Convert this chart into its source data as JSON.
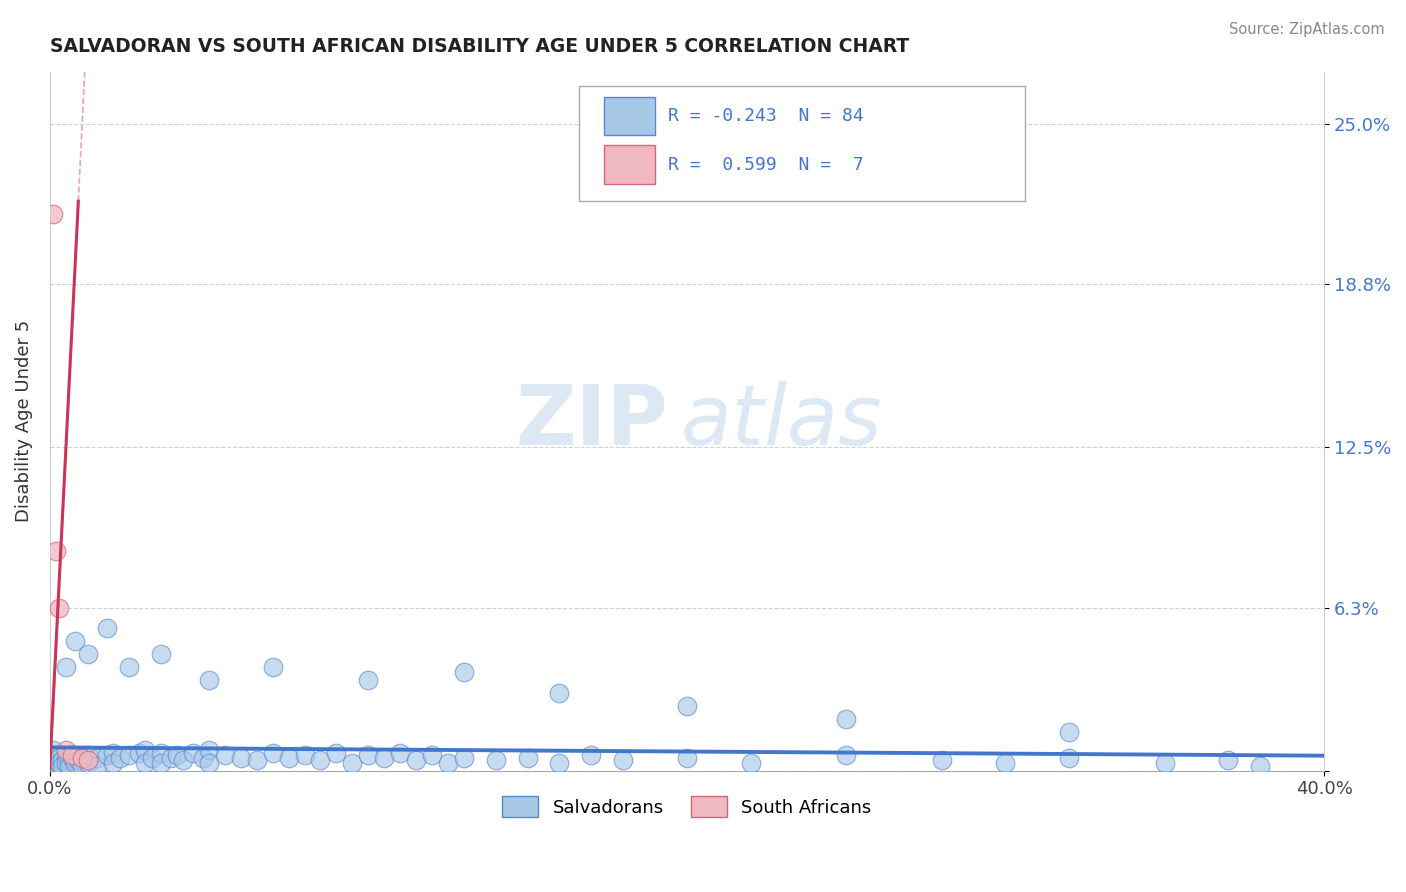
{
  "title": "SALVADORAN VS SOUTH AFRICAN DISABILITY AGE UNDER 5 CORRELATION CHART",
  "source": "Source: ZipAtlas.com",
  "ylabel": "Disability Age Under 5",
  "yticks": [
    0.0,
    0.063,
    0.125,
    0.188,
    0.25
  ],
  "ytick_labels": [
    "",
    "6.3%",
    "12.5%",
    "18.8%",
    "25.0%"
  ],
  "xtick_labels": [
    "0.0%",
    "40.0%"
  ],
  "xlim": [
    0.0,
    0.4
  ],
  "ylim": [
    0.0,
    0.27
  ],
  "blue_scatter_color": "#a8c8e8",
  "blue_scatter_edge": "#5588cc",
  "pink_scatter_color": "#f0b8c0",
  "pink_scatter_edge": "#d06878",
  "blue_line_color": "#4477cc",
  "pink_line_color": "#cc3355",
  "pink_dash_color": "#e09090",
  "grid_color": "#cccccc",
  "background_color": "#ffffff",
  "watermark_color": "#dde8f5",
  "legend_text_color": "#4477cc",
  "legend_border_color": "#aaaaaa",
  "sa_x": [
    0.001,
    0.002,
    0.003,
    0.005,
    0.007,
    0.01,
    0.012
  ],
  "sa_y": [
    0.215,
    0.085,
    0.063,
    0.008,
    0.006,
    0.005,
    0.004
  ],
  "sal_x": [
    0.001,
    0.001,
    0.002,
    0.002,
    0.003,
    0.003,
    0.004,
    0.004,
    0.005,
    0.005,
    0.006,
    0.006,
    0.007,
    0.008,
    0.008,
    0.009,
    0.01,
    0.01,
    0.012,
    0.012,
    0.015,
    0.015,
    0.018,
    0.02,
    0.02,
    0.022,
    0.025,
    0.028,
    0.03,
    0.03,
    0.032,
    0.035,
    0.035,
    0.038,
    0.04,
    0.042,
    0.045,
    0.048,
    0.05,
    0.05,
    0.055,
    0.06,
    0.065,
    0.07,
    0.075,
    0.08,
    0.085,
    0.09,
    0.095,
    0.1,
    0.105,
    0.11,
    0.115,
    0.12,
    0.125,
    0.13,
    0.14,
    0.15,
    0.16,
    0.17,
    0.18,
    0.2,
    0.22,
    0.25,
    0.28,
    0.3,
    0.32,
    0.35,
    0.37,
    0.38,
    0.005,
    0.008,
    0.012,
    0.018,
    0.025,
    0.035,
    0.05,
    0.07,
    0.1,
    0.13,
    0.16,
    0.2,
    0.25,
    0.32
  ],
  "sal_y": [
    0.008,
    0.004,
    0.006,
    0.003,
    0.005,
    0.003,
    0.004,
    0.002,
    0.005,
    0.003,
    0.004,
    0.002,
    0.005,
    0.003,
    0.006,
    0.004,
    0.005,
    0.002,
    0.006,
    0.003,
    0.005,
    0.002,
    0.006,
    0.007,
    0.003,
    0.005,
    0.006,
    0.007,
    0.008,
    0.003,
    0.005,
    0.007,
    0.003,
    0.005,
    0.006,
    0.004,
    0.007,
    0.005,
    0.008,
    0.003,
    0.006,
    0.005,
    0.004,
    0.007,
    0.005,
    0.006,
    0.004,
    0.007,
    0.003,
    0.006,
    0.005,
    0.007,
    0.004,
    0.006,
    0.003,
    0.005,
    0.004,
    0.005,
    0.003,
    0.006,
    0.004,
    0.005,
    0.003,
    0.006,
    0.004,
    0.003,
    0.005,
    0.003,
    0.004,
    0.002,
    0.04,
    0.05,
    0.045,
    0.055,
    0.04,
    0.045,
    0.035,
    0.04,
    0.035,
    0.038,
    0.03,
    0.025,
    0.02,
    0.015
  ],
  "sal_reg_slope": -0.008,
  "sal_reg_intercept": 0.009,
  "sa_reg_slope": 25.0,
  "sa_reg_intercept": -0.005,
  "sa_dash_slope": 25.0,
  "sa_dash_intercept": -0.005
}
